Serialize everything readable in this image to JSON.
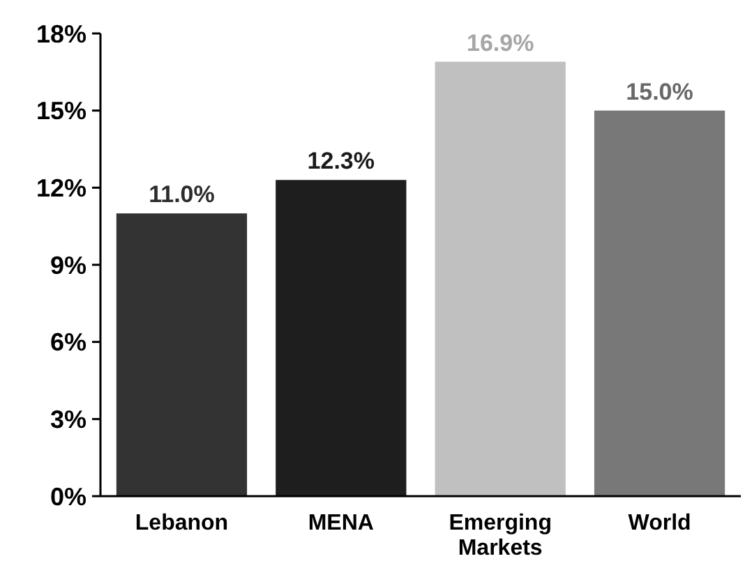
{
  "chart_data": {
    "type": "bar",
    "categories": [
      "Lebanon",
      "MENA",
      "Emerging Markets",
      "World"
    ],
    "values": [
      11.0,
      12.3,
      16.9,
      15.0
    ],
    "colors": [
      "#333333",
      "#1e1e1e",
      "#c0c0c0",
      "#787878"
    ],
    "value_labels": [
      "11.0%",
      "12.3%",
      "16.9%",
      "15.0%"
    ],
    "ylim": [
      0,
      18
    ],
    "yticks": [
      {
        "value": 0,
        "label": "0%"
      },
      {
        "value": 3,
        "label": "3%"
      },
      {
        "value": 6,
        "label": "6%"
      },
      {
        "value": 9,
        "label": "9%"
      },
      {
        "value": 12,
        "label": "12%"
      },
      {
        "value": 15,
        "label": "15%"
      },
      {
        "value": 18,
        "label": "18%"
      }
    ],
    "grid": false
  }
}
